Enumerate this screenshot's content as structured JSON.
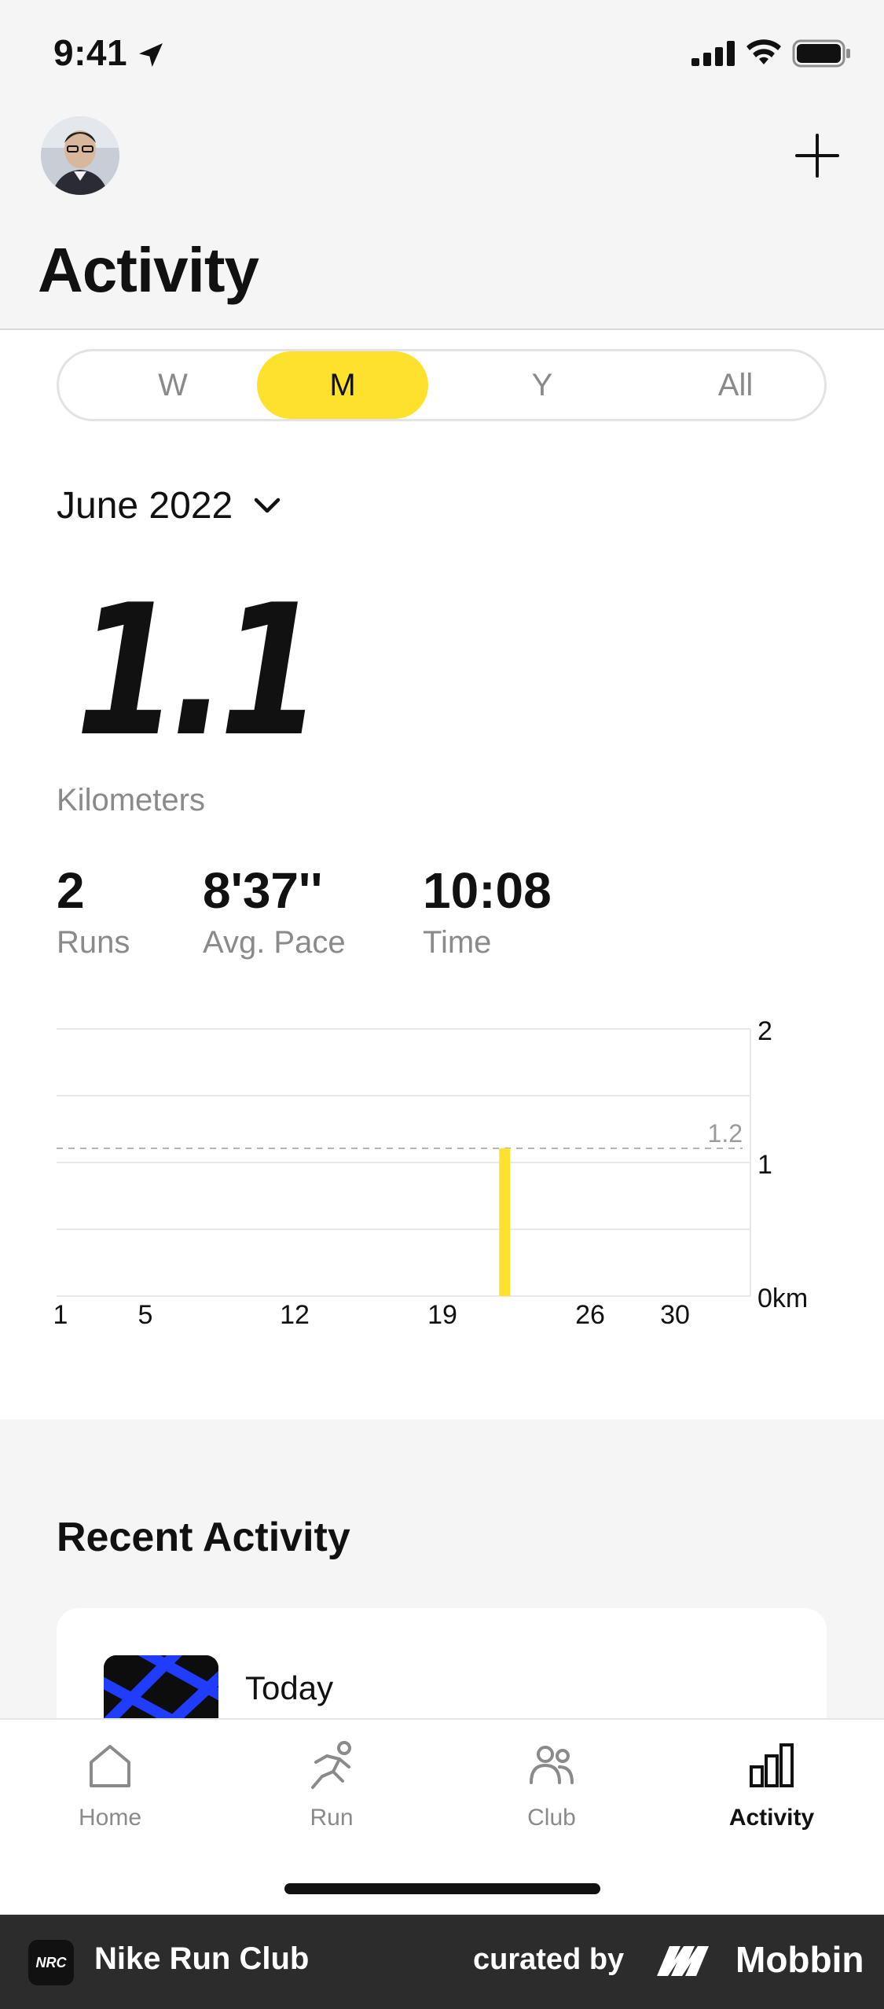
{
  "status_bar": {
    "time": "9:41"
  },
  "header": {
    "title": "Activity"
  },
  "segment": {
    "items": [
      {
        "label": "W"
      },
      {
        "label": "M"
      },
      {
        "label": "Y"
      },
      {
        "label": "All"
      }
    ],
    "selected": "M"
  },
  "period": {
    "label": "June 2022"
  },
  "summary": {
    "distance": "1.1",
    "distance_unit": "Kilometers",
    "stats": [
      {
        "value": "2",
        "label": "Runs"
      },
      {
        "value": "8'37''",
        "label": "Avg. Pace"
      },
      {
        "value": "10:08",
        "label": "Time"
      }
    ]
  },
  "chart_data": {
    "type": "bar",
    "x_ticks": [
      "1",
      "5",
      "12",
      "19",
      "26",
      "30"
    ],
    "y_ticks": [
      "2",
      "1",
      "0km"
    ],
    "ylim": [
      0,
      2
    ],
    "xlim": [
      1,
      30
    ],
    "average_line": {
      "label": "1.2",
      "value": 1.2
    },
    "bars": [
      {
        "day": 22,
        "value": 1.2
      }
    ],
    "bar_color": "#fde12d"
  },
  "recent": {
    "title": "Recent Activity",
    "items": [
      {
        "label": "Today"
      }
    ]
  },
  "tabbar": {
    "items": [
      {
        "label": "Home",
        "icon": "home-icon"
      },
      {
        "label": "Run",
        "icon": "run-icon"
      },
      {
        "label": "Club",
        "icon": "club-icon"
      },
      {
        "label": "Activity",
        "icon": "activity-icon"
      }
    ],
    "active": "Activity"
  },
  "footer": {
    "app_logo_text": "NRC",
    "app_name": "Nike Run Club",
    "curated": "curated by",
    "brand": "Mobbin"
  },
  "colors": {
    "accent": "#fde12d",
    "header_bg": "#f5f5f5",
    "muted": "#8a8a8a"
  }
}
